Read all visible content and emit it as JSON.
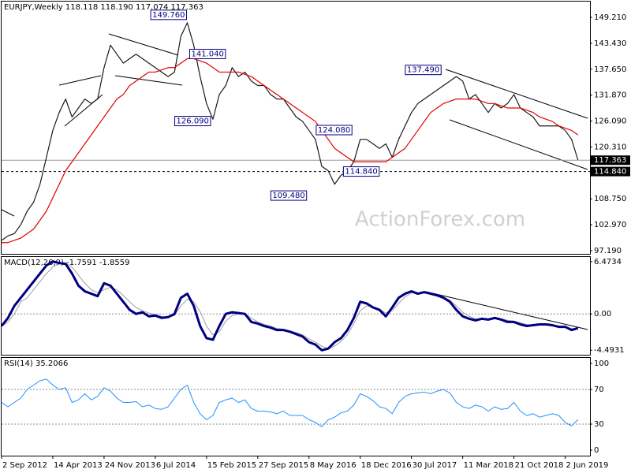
{
  "chart_data": [
    {
      "type": "line",
      "title": "EURJPY,Weekly  118.118 118.190 117.074 117.363",
      "watermark": "ActionForex.com",
      "x": [
        0,
        4,
        8,
        12,
        16,
        20,
        24,
        28,
        32,
        36,
        40,
        44,
        48,
        52,
        56,
        60,
        64,
        68,
        72,
        76,
        80,
        84,
        88,
        92,
        96,
        100,
        104,
        108,
        112,
        116,
        120,
        124,
        128,
        132,
        136,
        140,
        144,
        148,
        152,
        156,
        160,
        164,
        168,
        172,
        176,
        180,
        184,
        188,
        192,
        196,
        200,
        204,
        208,
        212,
        216,
        220,
        224,
        228,
        232,
        236,
        240,
        244,
        248,
        252,
        256,
        260,
        264,
        268,
        272,
        276,
        280,
        284,
        288,
        292,
        296,
        300,
        304,
        308,
        312,
        316,
        320,
        324,
        328,
        332,
        336,
        340,
        344,
        348,
        352,
        356,
        360
      ],
      "xlim": [
        0,
        367.5
      ],
      "ylim": [
        96.49,
        152.72
      ],
      "yticks": [
        {
          "value": 149.21,
          "label": "149.210"
        },
        {
          "value": 143.43,
          "label": "143.430"
        },
        {
          "value": 137.65,
          "label": "137.650"
        },
        {
          "value": 131.87,
          "label": "131.870"
        },
        {
          "value": 126.09,
          "label": "126.090"
        },
        {
          "value": 120.31,
          "label": "120.310"
        },
        {
          "value": 108.75,
          "label": "108.750"
        },
        {
          "value": 102.97,
          "label": "102.970"
        },
        {
          "value": 97.19,
          "label": "97.190"
        }
      ],
      "hlines": [
        {
          "value": 117.363,
          "style": "solid"
        },
        {
          "value": 114.84,
          "label": "114.840",
          "style": "dashed"
        }
      ],
      "series": [
        {
          "color": "#1a1a1a",
          "linewidth": 1.2,
          "values": [
            99.5,
            100.5,
            101,
            103,
            106,
            108,
            112,
            118,
            124,
            128,
            131,
            127,
            129,
            131,
            130,
            131,
            138,
            143,
            141,
            139,
            140,
            141,
            140,
            139,
            138,
            137,
            136,
            137,
            145,
            148,
            143,
            136,
            130,
            126.5,
            132,
            134,
            138,
            136,
            137,
            135,
            134,
            134,
            132,
            131,
            131,
            129,
            127,
            126,
            124,
            122,
            116,
            115,
            112,
            114,
            115,
            117,
            122,
            122,
            121,
            120,
            121,
            118,
            122,
            125,
            128,
            130,
            131,
            132,
            133,
            134,
            135,
            136,
            135,
            131,
            132,
            130,
            128,
            130,
            129,
            130,
            132,
            129,
            128,
            127,
            125,
            125,
            125,
            125,
            124,
            122,
            117.4
          ]
        },
        {
          "color": "#e00000",
          "linewidth": 1.2,
          "values": [
            99,
            99,
            99.5,
            100,
            101,
            102,
            104,
            106,
            109,
            112,
            115,
            117,
            119,
            121,
            123,
            125,
            127,
            129,
            131,
            132,
            134,
            135,
            136,
            137,
            137,
            137.5,
            138,
            138,
            139,
            140,
            140,
            139.5,
            139,
            138,
            137,
            137,
            137,
            137,
            136.5,
            136,
            135,
            134,
            133,
            132,
            131,
            130,
            129,
            128,
            127,
            126,
            124,
            122,
            120,
            119,
            118,
            117,
            117,
            117,
            117,
            117,
            117,
            118,
            119,
            120,
            122,
            124,
            126,
            128,
            129,
            130,
            130.5,
            131,
            131,
            131,
            131,
            130.5,
            130,
            130,
            129.5,
            129,
            129,
            129,
            128.5,
            128,
            127,
            126.5,
            126,
            125,
            124.5,
            124,
            123
          ]
        }
      ],
      "annotations": [
        {
          "label": "149.760",
          "value": 149.76,
          "x": 116,
          "anchor": "end"
        },
        {
          "label": "141.040",
          "value": 141.04,
          "x": 117,
          "anchor": "start"
        },
        {
          "label": "126.090",
          "value": 126.09,
          "x": 131,
          "anchor": "end"
        },
        {
          "label": "137.490",
          "value": 137.49,
          "x": 275,
          "anchor": "end"
        },
        {
          "label": "124.080",
          "value": 124.08,
          "x": 196,
          "anchor": "start"
        },
        {
          "label": "114.840",
          "value": 114.84,
          "x": 213,
          "anchor": "start"
        },
        {
          "label": "109.480",
          "value": 109.48,
          "x": 191,
          "anchor": "end"
        }
      ]
    },
    {
      "type": "line",
      "title": "MACD(12,26,9) -1.7591 -1.8559",
      "x": [
        0,
        4,
        8,
        12,
        16,
        20,
        24,
        28,
        32,
        36,
        40,
        44,
        48,
        52,
        56,
        60,
        64,
        68,
        72,
        76,
        80,
        84,
        88,
        92,
        96,
        100,
        104,
        108,
        112,
        116,
        120,
        124,
        128,
        132,
        136,
        140,
        144,
        148,
        152,
        156,
        160,
        164,
        168,
        172,
        176,
        180,
        184,
        188,
        192,
        196,
        200,
        204,
        208,
        212,
        216,
        220,
        224,
        228,
        232,
        236,
        240,
        244,
        248,
        252,
        256,
        260,
        264,
        268,
        272,
        276,
        280,
        284,
        288,
        292,
        296,
        300,
        304,
        308,
        312,
        316,
        320,
        324,
        328,
        332,
        336,
        340,
        344,
        348,
        352,
        356,
        360
      ],
      "xlim": [
        0,
        367.5
      ],
      "ylim": [
        -5.06,
        7.05
      ],
      "yticks": [
        6.4734,
        -4.4931
      ],
      "levels": [
        {
          "value": 0,
          "label": "0.00"
        }
      ],
      "series": [
        {
          "color": "#a0a0a0",
          "linewidth": 1,
          "values": [
            -1.5,
            -1,
            0,
            1.5,
            2,
            3,
            4,
            5,
            5.8,
            6.2,
            6.3,
            5.8,
            4.8,
            3.8,
            3,
            2.6,
            3,
            3.3,
            3,
            2.3,
            1.5,
            0.8,
            0.4,
            0.1,
            -0.1,
            -0.3,
            -0.4,
            -0.2,
            1,
            1.8,
            1.5,
            0.3,
            -1.5,
            -2.6,
            -2.2,
            -0.9,
            -0.2,
            0,
            0,
            -0.5,
            -1,
            -1.3,
            -1.5,
            -1.8,
            -1.9,
            -2.1,
            -2.3,
            -2.6,
            -3.1,
            -3.5,
            -4,
            -4.3,
            -4,
            -3.4,
            -2.6,
            -1.2,
            0.4,
            1,
            0.9,
            0.6,
            0.1,
            0.4,
            1.3,
            2.1,
            2.6,
            2.6,
            2.6,
            2.5,
            2.4,
            2.1,
            1.7,
            1,
            0.2,
            -0.3,
            -0.6,
            -0.6,
            -0.7,
            -0.6,
            -0.6,
            -0.8,
            -0.9,
            -1.1,
            -1.3,
            -1.4,
            -1.3,
            -1.3,
            -1.4,
            -1.5,
            -1.6,
            -1.8,
            -1.86
          ]
        },
        {
          "color": "#000080",
          "linewidth": 3,
          "values": [
            -1.5,
            -0.5,
            1,
            2,
            3,
            4,
            5,
            6,
            6.5,
            6.3,
            6.2,
            5,
            3.5,
            2.8,
            2.5,
            2.2,
            3.8,
            3.5,
            2.5,
            1.5,
            0.5,
            0,
            0.2,
            -0.3,
            -0.2,
            -0.5,
            -0.4,
            0,
            2,
            2.5,
            1,
            -1.5,
            -3,
            -3.2,
            -1.5,
            0,
            0.2,
            0.1,
            0,
            -1,
            -1.2,
            -1.5,
            -1.7,
            -2,
            -2,
            -2.2,
            -2.5,
            -2.8,
            -3.5,
            -3.8,
            -4.5,
            -4.3,
            -3.5,
            -3,
            -2,
            -0.5,
            1.5,
            1.3,
            0.8,
            0.5,
            -0.3,
            0.8,
            2,
            2.5,
            2.8,
            2.5,
            2.7,
            2.5,
            2.3,
            2,
            1.5,
            0.5,
            -0.3,
            -0.6,
            -0.8,
            -0.6,
            -0.7,
            -0.5,
            -0.7,
            -1,
            -1,
            -1.3,
            -1.5,
            -1.4,
            -1.3,
            -1.3,
            -1.4,
            -1.6,
            -1.6,
            -2,
            -1.76
          ]
        }
      ]
    },
    {
      "type": "line",
      "title": "RSI(14) 35.2066",
      "x": [
        0,
        4,
        8,
        12,
        16,
        20,
        24,
        28,
        32,
        36,
        40,
        44,
        48,
        52,
        56,
        60,
        64,
        68,
        72,
        76,
        80,
        84,
        88,
        92,
        96,
        100,
        104,
        108,
        112,
        116,
        120,
        124,
        128,
        132,
        136,
        140,
        144,
        148,
        152,
        156,
        160,
        164,
        168,
        172,
        176,
        180,
        184,
        188,
        192,
        196,
        200,
        204,
        208,
        212,
        216,
        220,
        224,
        228,
        232,
        236,
        240,
        244,
        248,
        252,
        256,
        260,
        264,
        268,
        272,
        276,
        280,
        284,
        288,
        292,
        296,
        300,
        304,
        308,
        312,
        316,
        320,
        324,
        328,
        332,
        336,
        340,
        344,
        348,
        352,
        356,
        360
      ],
      "xlim": [
        0,
        367.5
      ],
      "ylim": [
        -6.4,
        106.4
      ],
      "yticks": [
        0,
        100
      ],
      "levels": [
        30,
        70
      ],
      "xticks": [
        {
          "value": 0,
          "label": "2 Sep 2012"
        },
        {
          "value": 32,
          "label": "14 Apr 2013"
        },
        {
          "value": 64,
          "label": "24 Nov 2013"
        },
        {
          "value": 96,
          "label": "6 Jul 2014"
        },
        {
          "value": 128,
          "label": "15 Feb 2015"
        },
        {
          "value": 160,
          "label": "27 Sep 2015"
        },
        {
          "value": 192,
          "label": "8 May 2016"
        },
        {
          "value": 224,
          "label": "18 Dec 2016"
        },
        {
          "value": 256,
          "label": "30 Jul 2017"
        },
        {
          "value": 288,
          "label": "11 Mar 2018"
        },
        {
          "value": 320,
          "label": "21 Oct 2018"
        },
        {
          "value": 352,
          "label": "2 Jun 2019"
        }
      ],
      "series": [
        {
          "color": "#1e90ff",
          "linewidth": 1,
          "values": [
            55,
            50,
            55,
            60,
            70,
            75,
            80,
            82,
            75,
            70,
            72,
            55,
            58,
            65,
            58,
            62,
            72,
            68,
            60,
            55,
            55,
            56,
            50,
            52,
            48,
            47,
            50,
            60,
            70,
            75,
            55,
            42,
            35,
            40,
            55,
            58,
            60,
            55,
            58,
            48,
            45,
            45,
            44,
            42,
            45,
            40,
            40,
            40,
            35,
            32,
            27,
            35,
            38,
            43,
            45,
            52,
            65,
            62,
            57,
            50,
            48,
            42,
            55,
            62,
            65,
            66,
            67,
            65,
            68,
            70,
            66,
            55,
            50,
            48,
            52,
            50,
            45,
            50,
            47,
            48,
            55,
            45,
            40,
            42,
            38,
            40,
            42,
            40,
            32,
            28,
            35.2
          ]
        }
      ]
    }
  ]
}
